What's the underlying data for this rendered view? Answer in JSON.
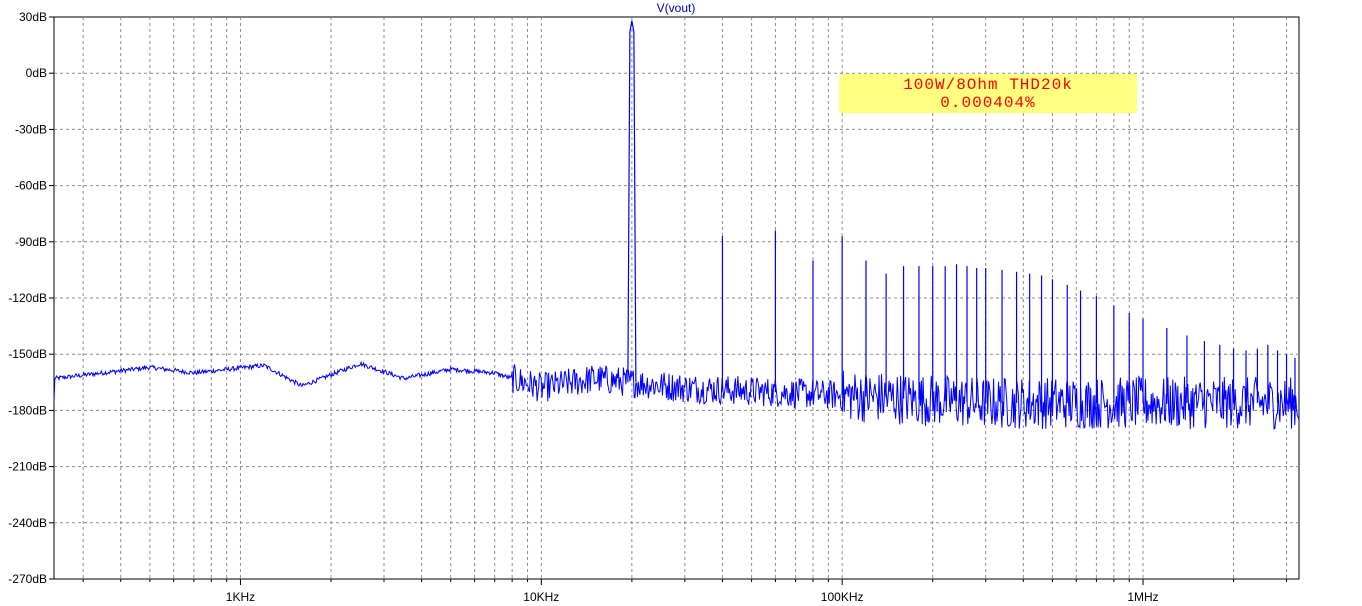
{
  "chart_data": {
    "type": "line",
    "title": "V(vout)",
    "xscale": "log",
    "xlim": [
      240,
      3300000
    ],
    "ylim": [
      -270,
      30
    ],
    "yticks": [
      30,
      0,
      -30,
      -60,
      -90,
      -120,
      -150,
      -180,
      -210,
      -240,
      -270
    ],
    "ytick_labels": [
      "30dB",
      "0dB",
      "-30dB",
      "-60dB",
      "-90dB",
      "-120dB",
      "-150dB",
      "-180dB",
      "-210dB",
      "-240dB",
      "-270dB"
    ],
    "xticks": [
      1000,
      10000,
      100000,
      1000000
    ],
    "xtick_labels": [
      "1KHz",
      "10KHz",
      "100KHz",
      "1MHz"
    ],
    "grid": true,
    "series": [
      {
        "name": "V(vout)",
        "color": "#0000ff",
        "fundamental": {
          "freq": 20000,
          "db": 28
        },
        "harmonics_db": [
          {
            "freq": 40000,
            "db": -87
          },
          {
            "freq": 60000,
            "db": -84
          },
          {
            "freq": 80000,
            "db": -100
          },
          {
            "freq": 100000,
            "db": -87
          },
          {
            "freq": 120000,
            "db": -100
          },
          {
            "freq": 140000,
            "db": -107
          },
          {
            "freq": 160000,
            "db": -103
          },
          {
            "freq": 180000,
            "db": -103
          },
          {
            "freq": 200000,
            "db": -103
          },
          {
            "freq": 220000,
            "db": -103
          },
          {
            "freq": 240000,
            "db": -102
          },
          {
            "freq": 260000,
            "db": -103
          },
          {
            "freq": 280000,
            "db": -104
          },
          {
            "freq": 300000,
            "db": -104
          },
          {
            "freq": 340000,
            "db": -105
          },
          {
            "freq": 380000,
            "db": -106
          },
          {
            "freq": 420000,
            "db": -107
          },
          {
            "freq": 460000,
            "db": -108
          },
          {
            "freq": 500000,
            "db": -110
          },
          {
            "freq": 560000,
            "db": -113
          },
          {
            "freq": 620000,
            "db": -116
          },
          {
            "freq": 700000,
            "db": -119
          },
          {
            "freq": 800000,
            "db": -124
          },
          {
            "freq": 900000,
            "db": -128
          },
          {
            "freq": 1000000,
            "db": -131
          },
          {
            "freq": 1200000,
            "db": -136
          },
          {
            "freq": 1400000,
            "db": -140
          },
          {
            "freq": 1600000,
            "db": -143
          },
          {
            "freq": 1800000,
            "db": -145
          },
          {
            "freq": 2000000,
            "db": -147
          },
          {
            "freq": 2200000,
            "db": -148
          },
          {
            "freq": 2400000,
            "db": -147
          },
          {
            "freq": 2600000,
            "db": -145
          },
          {
            "freq": 2800000,
            "db": -148
          },
          {
            "freq": 3000000,
            "db": -150
          },
          {
            "freq": 3200000,
            "db": -152
          }
        ],
        "noise_floor_db": [
          {
            "freq": 240,
            "db": -163
          },
          {
            "freq": 500,
            "db": -157
          },
          {
            "freq": 700,
            "db": -160
          },
          {
            "freq": 1200,
            "db": -156
          },
          {
            "freq": 1600,
            "db": -167
          },
          {
            "freq": 2500,
            "db": -155
          },
          {
            "freq": 3500,
            "db": -163
          },
          {
            "freq": 5000,
            "db": -158
          },
          {
            "freq": 7000,
            "db": -160
          },
          {
            "freq": 10000,
            "db": -168
          },
          {
            "freq": 15000,
            "db": -163
          },
          {
            "freq": 30000,
            "db": -168
          },
          {
            "freq": 100000,
            "db": -172
          },
          {
            "freq": 300000,
            "db": -176
          },
          {
            "freq": 1000000,
            "db": -176
          },
          {
            "freq": 3300000,
            "db": -176
          }
        ]
      }
    ],
    "annotation": {
      "line1": "100W/8Ohm THD20k",
      "line2": "0.000404%",
      "bg_color": "#ffff80",
      "text_color": "#ff0000"
    }
  }
}
